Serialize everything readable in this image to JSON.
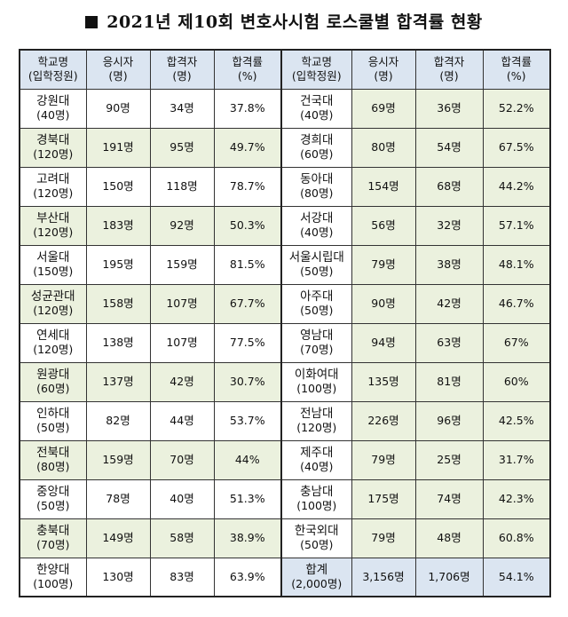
{
  "title": "2021년 제10회 변호사시험 로스쿨별 합격률 현황",
  "header": {
    "school_line1": "학교명",
    "school_line2": "(입학정원)",
    "applicants_line1": "응시자",
    "applicants_line2": "(명)",
    "passers_line1": "합격자",
    "passers_line2": "(명)",
    "rate_line1": "합격률",
    "rate_line2": "(%)"
  },
  "left": [
    {
      "name": "강원대",
      "quota": "(40명)",
      "applicants": "90명",
      "passers": "34명",
      "rate": "37.8%"
    },
    {
      "name": "경북대",
      "quota": "(120명)",
      "applicants": "191명",
      "passers": "95명",
      "rate": "49.7%"
    },
    {
      "name": "고려대",
      "quota": "(120명)",
      "applicants": "150명",
      "passers": "118명",
      "rate": "78.7%"
    },
    {
      "name": "부산대",
      "quota": "(120명)",
      "applicants": "183명",
      "passers": "92명",
      "rate": "50.3%"
    },
    {
      "name": "서울대",
      "quota": "(150명)",
      "applicants": "195명",
      "passers": "159명",
      "rate": "81.5%"
    },
    {
      "name": "성균관대",
      "quota": "(120명)",
      "applicants": "158명",
      "passers": "107명",
      "rate": "67.7%"
    },
    {
      "name": "연세대",
      "quota": "(120명)",
      "applicants": "138명",
      "passers": "107명",
      "rate": "77.5%"
    },
    {
      "name": "원광대",
      "quota": "(60명)",
      "applicants": "137명",
      "passers": "42명",
      "rate": "30.7%"
    },
    {
      "name": "인하대",
      "quota": "(50명)",
      "applicants": "82명",
      "passers": "44명",
      "rate": "53.7%"
    },
    {
      "name": "전북대",
      "quota": "(80명)",
      "applicants": "159명",
      "passers": "70명",
      "rate": "44%"
    },
    {
      "name": "중앙대",
      "quota": "(50명)",
      "applicants": "78명",
      "passers": "40명",
      "rate": "51.3%"
    },
    {
      "name": "충북대",
      "quota": "(70명)",
      "applicants": "149명",
      "passers": "58명",
      "rate": "38.9%"
    },
    {
      "name": "한양대",
      "quota": "(100명)",
      "applicants": "130명",
      "passers": "83명",
      "rate": "63.9%"
    }
  ],
  "right": [
    {
      "name": "건국대",
      "quota": "(40명)",
      "applicants": "69명",
      "passers": "36명",
      "rate": "52.2%"
    },
    {
      "name": "경희대",
      "quota": "(60명)",
      "applicants": "80명",
      "passers": "54명",
      "rate": "67.5%"
    },
    {
      "name": "동아대",
      "quota": "(80명)",
      "applicants": "154명",
      "passers": "68명",
      "rate": "44.2%"
    },
    {
      "name": "서강대",
      "quota": "(40명)",
      "applicants": "56명",
      "passers": "32명",
      "rate": "57.1%"
    },
    {
      "name": "서울시립대",
      "quota": "(50명)",
      "applicants": "79명",
      "passers": "38명",
      "rate": "48.1%"
    },
    {
      "name": "아주대",
      "quota": "(50명)",
      "applicants": "90명",
      "passers": "42명",
      "rate": "46.7%"
    },
    {
      "name": "영남대",
      "quota": "(70명)",
      "applicants": "94명",
      "passers": "63명",
      "rate": "67%"
    },
    {
      "name": "이화여대",
      "quota": "(100명)",
      "applicants": "135명",
      "passers": "81명",
      "rate": "60%"
    },
    {
      "name": "전남대",
      "quota": "(120명)",
      "applicants": "226명",
      "passers": "96명",
      "rate": "42.5%"
    },
    {
      "name": "제주대",
      "quota": "(40명)",
      "applicants": "79명",
      "passers": "25명",
      "rate": "31.7%"
    },
    {
      "name": "충남대",
      "quota": "(100명)",
      "applicants": "175명",
      "passers": "74명",
      "rate": "42.3%"
    },
    {
      "name": "한국외대",
      "quota": "(50명)",
      "applicants": "79명",
      "passers": "48명",
      "rate": "60.8%"
    },
    {
      "name": "합계",
      "quota": "(2,000명)",
      "applicants": "3,156명",
      "passers": "1,706명",
      "rate": "54.1%"
    }
  ],
  "colors": {
    "header_fill": "#dbe5f1",
    "shade_fill": "#ebf1de",
    "total_fill": "#dbe5f1",
    "border": "#333333"
  }
}
